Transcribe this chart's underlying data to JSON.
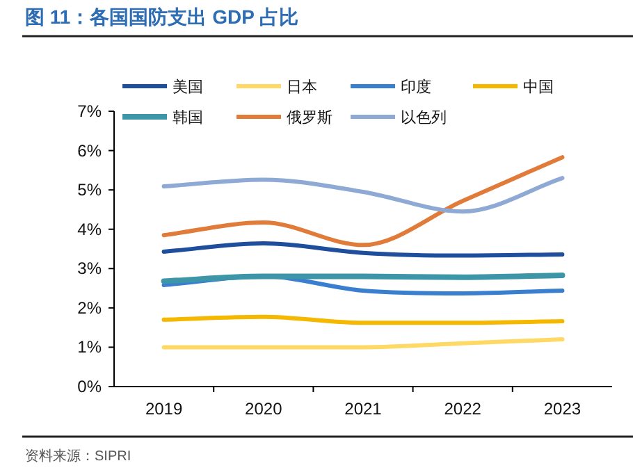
{
  "chart_data": {
    "type": "line",
    "title": "图 11：各国国防支出 GDP 占比",
    "categories": [
      "2019",
      "2020",
      "2021",
      "2022",
      "2023"
    ],
    "series": [
      {
        "name": "美国",
        "color": "#1f4e9c",
        "values": [
          3.43,
          3.64,
          3.4,
          3.33,
          3.36
        ]
      },
      {
        "name": "日本",
        "color": "#ffd966",
        "values": [
          1.0,
          1.0,
          1.0,
          1.1,
          1.2
        ]
      },
      {
        "name": "印度",
        "color": "#3a7fcf",
        "values": [
          2.58,
          2.8,
          2.44,
          2.37,
          2.44
        ]
      },
      {
        "name": "中国",
        "color": "#f5b800",
        "values": [
          1.7,
          1.77,
          1.62,
          1.62,
          1.66
        ]
      },
      {
        "name": "韩国",
        "color": "#3d96a8",
        "values": [
          2.68,
          2.8,
          2.8,
          2.78,
          2.83
        ]
      },
      {
        "name": "俄罗斯",
        "color": "#e07b39",
        "values": [
          3.85,
          4.17,
          3.6,
          4.72,
          5.83
        ]
      },
      {
        "name": "以色列",
        "color": "#8ea9d4",
        "values": [
          5.09,
          5.26,
          4.95,
          4.45,
          5.3
        ]
      }
    ],
    "ylim": [
      0,
      7
    ],
    "yticks": [
      {
        "value": 0,
        "label": "0%"
      },
      {
        "value": 1,
        "label": "1%"
      },
      {
        "value": 2,
        "label": "2%"
      },
      {
        "value": 3,
        "label": "3%"
      },
      {
        "value": 4,
        "label": "4%"
      },
      {
        "value": 5,
        "label": "5%"
      },
      {
        "value": 6,
        "label": "6%"
      },
      {
        "value": 7,
        "label": "7%"
      }
    ],
    "grid": false,
    "legend": "top",
    "marker": "none",
    "line_style": "solid",
    "annotations": [
      "资料来源：SIPRI"
    ]
  }
}
